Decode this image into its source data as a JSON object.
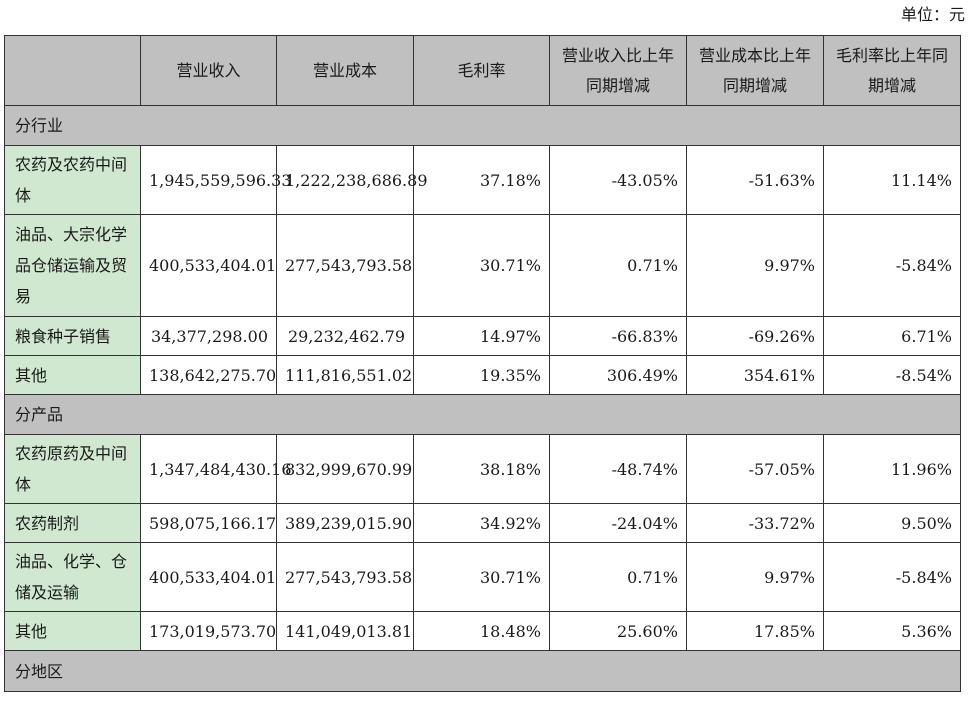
{
  "unit_label": "单位：元",
  "header": {
    "c0": "",
    "c1": "营业收入",
    "c2": "营业成本",
    "c3": "毛利率",
    "c4": "营业收入比上年同期增减",
    "c5": "营业成本比上年同期增减",
    "c6": "毛利率比上年同期增减"
  },
  "sections": {
    "industry": "分行业",
    "product": "分产品",
    "region": "分地区"
  },
  "industry_rows": [
    {
      "name": "农药及农药中间体",
      "revenue": "1,945,559,596.33",
      "cost": "1,222,238,686.89",
      "margin": "37.18%",
      "rev_chg": "-43.05%",
      "cost_chg": "-51.63%",
      "margin_chg": "11.14%"
    },
    {
      "name": "油品、大宗化学品仓储运输及贸易",
      "revenue": "400,533,404.01",
      "cost": "277,543,793.58",
      "margin": "30.71%",
      "rev_chg": "0.71%",
      "cost_chg": "9.97%",
      "margin_chg": "-5.84%"
    },
    {
      "name": "粮食种子销售",
      "revenue": "34,377,298.00",
      "cost": "29,232,462.79",
      "margin": "14.97%",
      "rev_chg": "-66.83%",
      "cost_chg": "-69.26%",
      "margin_chg": "6.71%"
    },
    {
      "name": "其他",
      "revenue": "138,642,275.70",
      "cost": "111,816,551.02",
      "margin": "19.35%",
      "rev_chg": "306.49%",
      "cost_chg": "354.61%",
      "margin_chg": "-8.54%"
    }
  ],
  "product_rows": [
    {
      "name": "农药原药及中间体",
      "revenue": "1,347,484,430.16",
      "cost": "832,999,670.99",
      "margin": "38.18%",
      "rev_chg": "-48.74%",
      "cost_chg": "-57.05%",
      "margin_chg": "11.96%"
    },
    {
      "name": "农药制剂",
      "revenue": "598,075,166.17",
      "cost": "389,239,015.90",
      "margin": "34.92%",
      "rev_chg": "-24.04%",
      "cost_chg": "-33.72%",
      "margin_chg": "9.50%"
    },
    {
      "name": "油品、化学、仓储及运输",
      "revenue": "400,533,404.01",
      "cost": "277,543,793.58",
      "margin": "30.71%",
      "rev_chg": "0.71%",
      "cost_chg": "9.97%",
      "margin_chg": "-5.84%"
    },
    {
      "name": "其他",
      "revenue": "173,019,573.70",
      "cost": "141,049,013.81",
      "margin": "18.48%",
      "rev_chg": "25.60%",
      "cost_chg": "17.85%",
      "margin_chg": "5.36%"
    }
  ]
}
